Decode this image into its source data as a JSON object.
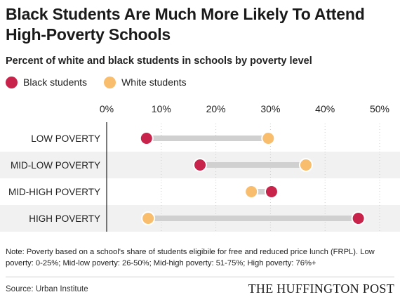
{
  "title": "Black Students Are Much More Likely To Attend High-Poverty Schools",
  "subtitle": "Percent of white and black students in schools by poverty level",
  "legend": [
    {
      "label": "Black students",
      "color": "#c8234a"
    },
    {
      "label": "White students",
      "color": "#f8bd6d"
    }
  ],
  "note": "Note: Poverty based on a school's share of students eligibile for free and reduced price lunch (FRPL). Low poverty: 0-25%; Mid-low poverty: 26-50%; Mid-high poverty: 51-75%; High poverty: 76%+",
  "source": "Source: Urban Institute",
  "brand": "THE HUFFINGTON POST",
  "chart_data": {
    "type": "dot-range",
    "categories": [
      "LOW POVERTY",
      "MID-LOW POVERTY",
      "MID-HIGH POVERTY",
      "HIGH POVERTY"
    ],
    "series": [
      {
        "name": "Black students",
        "color": "#c8234a",
        "values": [
          7.3,
          17.1,
          30.2,
          46.1
        ]
      },
      {
        "name": "White students",
        "color": "#f8bd6d",
        "values": [
          29.6,
          36.5,
          26.5,
          7.6
        ]
      }
    ],
    "xlim": [
      0,
      50
    ],
    "xticks": [
      0,
      10,
      20,
      30,
      40,
      50
    ],
    "xtick_labels": [
      "0%",
      "10%",
      "20%",
      "30%",
      "40%",
      "50%"
    ],
    "connector_color": "#d0d0d0",
    "band_color": "#f1f1f1",
    "gridlines": true
  }
}
